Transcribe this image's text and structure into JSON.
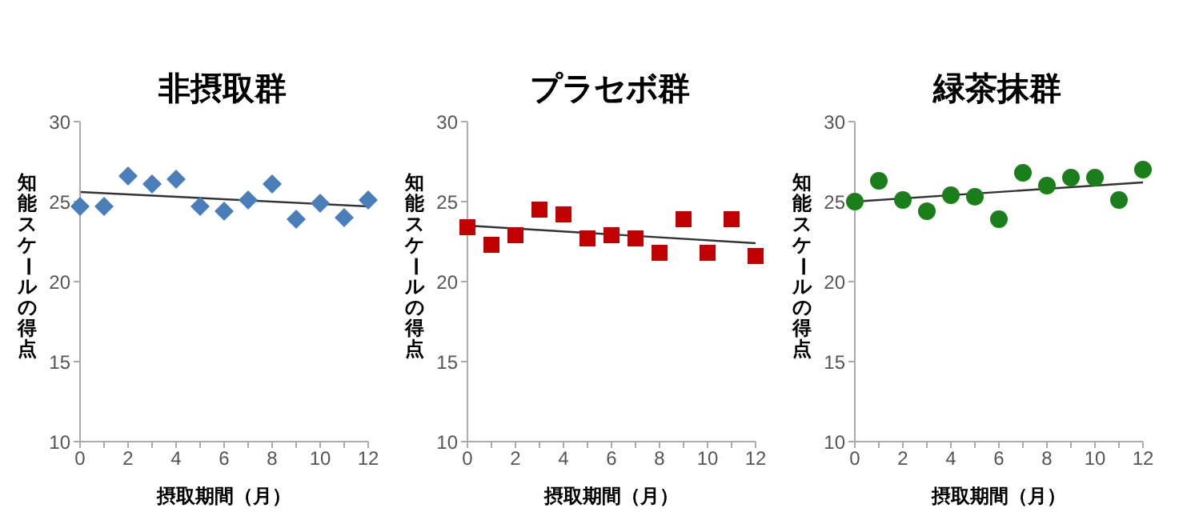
{
  "chart_data": [
    {
      "type": "scatter",
      "title": "非摂取群",
      "xlabel": "摂取期間（月）",
      "ylabel": "知能スケールの得点",
      "xlim": [
        0,
        12
      ],
      "ylim": [
        10,
        30
      ],
      "yticks": [
        10,
        15,
        20,
        25,
        30
      ],
      "grid": false,
      "legend": false,
      "xticks": [
        0,
        {
          "value": 1,
          "label": null
        },
        2,
        {
          "value": 3,
          "label": null
        },
        4,
        {
          "value": 5,
          "label": null
        },
        6,
        {
          "value": 7,
          "label": null
        },
        8,
        {
          "value": 9,
          "label": null
        },
        10,
        {
          "value": 11,
          "label": null
        },
        12
      ],
      "series": [
        {
          "marker": "diamond",
          "color": "#4a7ebb",
          "x": [
            0,
            1,
            2,
            3,
            4,
            5,
            6,
            7,
            8,
            9,
            10,
            11,
            12
          ],
          "values": [
            24.7,
            24.7,
            26.6,
            26.1,
            26.4,
            24.7,
            24.4,
            25.1,
            26.1,
            23.9,
            24.9,
            24.0,
            25.1
          ]
        },
        {
          "type": "line",
          "color": "#333333",
          "x": [
            0,
            12
          ],
          "values": [
            25.6,
            24.7
          ]
        }
      ]
    },
    {
      "type": "scatter",
      "title": "プラセボ群",
      "xlabel": "摂取期間（月）",
      "ylabel": "知能スケールの得点",
      "xlim": [
        0,
        12
      ],
      "ylim": [
        10,
        30
      ],
      "yticks": [
        10,
        15,
        20,
        25,
        30
      ],
      "grid": false,
      "legend": false,
      "xticks": [
        0,
        {
          "value": 1,
          "label": null
        },
        2,
        {
          "value": 3,
          "label": null
        },
        4,
        {
          "value": 5,
          "label": null
        },
        6,
        {
          "value": 7,
          "label": null
        },
        8,
        {
          "value": 9,
          "label": null
        },
        10,
        {
          "value": 11,
          "label": null
        },
        12
      ],
      "series": [
        {
          "marker": "square",
          "color": "#c00000",
          "x": [
            0,
            1,
            2,
            3,
            4,
            5,
            6,
            7,
            8,
            9,
            10,
            11,
            12
          ],
          "values": [
            23.4,
            22.3,
            22.9,
            24.5,
            24.2,
            22.7,
            22.9,
            22.7,
            21.8,
            23.9,
            21.8,
            23.9,
            21.6
          ]
        },
        {
          "type": "line",
          "color": "#333333",
          "x": [
            0,
            12
          ],
          "values": [
            23.5,
            22.4
          ]
        }
      ]
    },
    {
      "type": "scatter",
      "title": "緑茶抹群",
      "xlabel": "摂取期間（月）",
      "ylabel": "知能スケールの得点",
      "xlim": [
        0,
        12
      ],
      "ylim": [
        10,
        30
      ],
      "yticks": [
        10,
        15,
        20,
        25,
        30
      ],
      "grid": false,
      "legend": false,
      "xticks": [
        0,
        {
          "value": 1,
          "label": null
        },
        2,
        {
          "value": 3,
          "label": null
        },
        4,
        {
          "value": 5,
          "label": null
        },
        6,
        {
          "value": 7,
          "label": null
        },
        8,
        {
          "value": 9,
          "label": null
        },
        10,
        {
          "value": 11,
          "label": null
        },
        12
      ],
      "series": [
        {
          "marker": "circle",
          "color": "#1a7f1a",
          "x": [
            0,
            1,
            2,
            3,
            4,
            5,
            6,
            7,
            8,
            9,
            10,
            11,
            12
          ],
          "values": [
            25.0,
            26.3,
            25.1,
            24.4,
            25.4,
            25.3,
            23.9,
            26.8,
            26.0,
            26.5,
            26.5,
            25.1,
            27.0
          ]
        },
        {
          "type": "line",
          "color": "#333333",
          "x": [
            0,
            12
          ],
          "values": [
            25.0,
            26.2
          ]
        }
      ]
    }
  ]
}
